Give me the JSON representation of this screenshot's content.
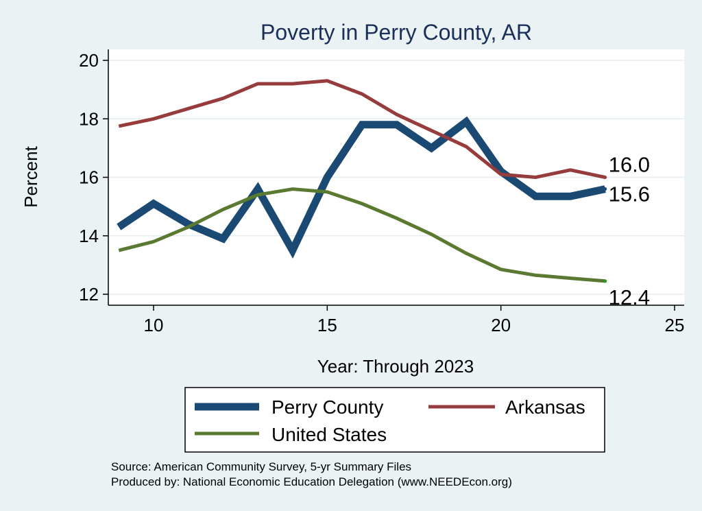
{
  "chart_data": {
    "type": "line",
    "title": "Poverty in Perry County, AR",
    "xlabel": "Year: Through 2023",
    "ylabel": "Percent",
    "xlim": [
      9,
      25
    ],
    "ylim": [
      12,
      20
    ],
    "xticks": [
      10,
      15,
      20,
      25
    ],
    "yticks": [
      12,
      14,
      16,
      18,
      20
    ],
    "grid": true,
    "legend_position": "bottom",
    "series": [
      {
        "name": "Perry County",
        "color": "#1a4a73",
        "x": [
          9,
          10,
          11,
          12,
          13,
          14,
          15,
          16,
          17,
          18,
          19,
          20,
          21,
          22,
          23
        ],
        "values": [
          14.3,
          15.1,
          14.4,
          13.9,
          15.6,
          13.5,
          16.0,
          17.8,
          17.8,
          17.0,
          17.9,
          16.2,
          15.35,
          15.35,
          15.6
        ],
        "end_label": "15.6"
      },
      {
        "name": "Arkansas",
        "color": "#963c3c",
        "x": [
          9,
          10,
          11,
          12,
          13,
          14,
          15,
          16,
          17,
          18,
          19,
          20,
          21,
          22,
          23
        ],
        "values": [
          17.75,
          18.0,
          18.35,
          18.7,
          19.2,
          19.2,
          19.3,
          18.85,
          18.15,
          17.6,
          17.05,
          16.1,
          16.0,
          16.25,
          16.0
        ],
        "end_label": "16.0"
      },
      {
        "name": "United States",
        "color": "#5a7a32",
        "x": [
          9,
          10,
          11,
          12,
          13,
          14,
          15,
          16,
          17,
          18,
          19,
          20,
          21,
          22,
          23
        ],
        "values": [
          13.5,
          13.8,
          14.3,
          14.9,
          15.4,
          15.6,
          15.5,
          15.1,
          14.6,
          14.05,
          13.4,
          12.85,
          12.65,
          12.55,
          12.45
        ],
        "end_label": "12.4"
      }
    ],
    "legend": [
      "Perry County",
      "Arkansas",
      "United States"
    ]
  },
  "footnotes": {
    "source": "Source: American Community Survey, 5-yr Summary Files",
    "produced": "Produced by: National Economic Education Delegation (www.NEEDEcon.org)"
  }
}
